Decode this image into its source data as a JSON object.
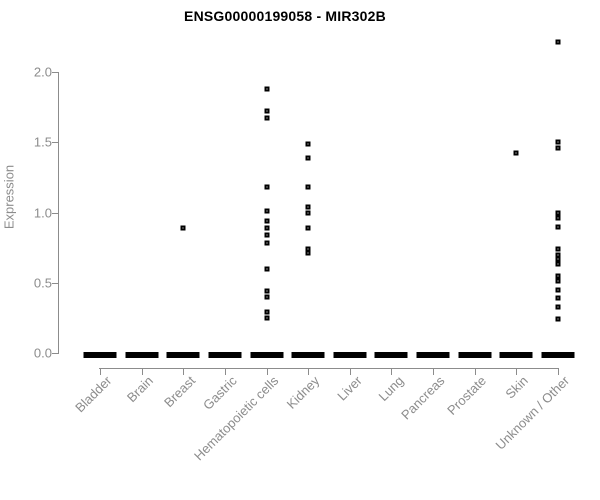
{
  "header": {
    "title": "ENSG00000199058 - MIR302B"
  },
  "chart_data": {
    "type": "scatter",
    "title": "ENSG00000199058 - MIR302B",
    "xlabel": "",
    "ylabel": "Expression",
    "ylim": [
      0,
      2.3
    ],
    "ytick_labels": [
      "0.0",
      "0.5",
      "1.0",
      "1.5",
      "2.0"
    ],
    "grid": false,
    "legend": false,
    "point_style": "open-square",
    "colors": {
      "points": "#000000",
      "axis": "#8c8c8c",
      "title": "#000000",
      "background": "#ffffff"
    },
    "categories": [
      "Bladder",
      "Brain",
      "Breast",
      "Gastric",
      "Hematopoietic cells",
      "Kidney",
      "Liver",
      "Lung",
      "Pancreas",
      "Prostate",
      "Skin",
      "Unknown / Other"
    ],
    "series": [
      {
        "category": "Bladder",
        "zero_cluster": true,
        "nonzero_values": []
      },
      {
        "category": "Brain",
        "zero_cluster": true,
        "nonzero_values": []
      },
      {
        "category": "Breast",
        "zero_cluster": true,
        "nonzero_values": [
          0.89
        ]
      },
      {
        "category": "Gastric",
        "zero_cluster": true,
        "nonzero_values": []
      },
      {
        "category": "Hematopoietic cells",
        "zero_cluster": true,
        "nonzero_values": [
          1.88,
          1.72,
          1.67,
          1.18,
          1.01,
          0.94,
          0.89,
          0.84,
          0.78,
          0.6,
          0.44,
          0.4,
          0.29,
          0.25
        ]
      },
      {
        "category": "Kidney",
        "zero_cluster": true,
        "nonzero_values": [
          1.49,
          1.39,
          1.18,
          1.04,
          1.0,
          0.89,
          0.74,
          0.71
        ]
      },
      {
        "category": "Liver",
        "zero_cluster": true,
        "nonzero_values": []
      },
      {
        "category": "Lung",
        "zero_cluster": true,
        "nonzero_values": []
      },
      {
        "category": "Pancreas",
        "zero_cluster": true,
        "nonzero_values": []
      },
      {
        "category": "Prostate",
        "zero_cluster": true,
        "nonzero_values": []
      },
      {
        "category": "Skin",
        "zero_cluster": true,
        "nonzero_values": [
          1.42
        ]
      },
      {
        "category": "Unknown / Other",
        "zero_cluster": true,
        "nonzero_values": [
          2.21,
          1.5,
          1.46,
          1.0,
          0.96,
          0.9,
          0.74,
          0.7,
          0.67,
          0.63,
          0.55,
          0.51,
          0.45,
          0.39,
          0.33,
          0.24
        ]
      }
    ]
  }
}
